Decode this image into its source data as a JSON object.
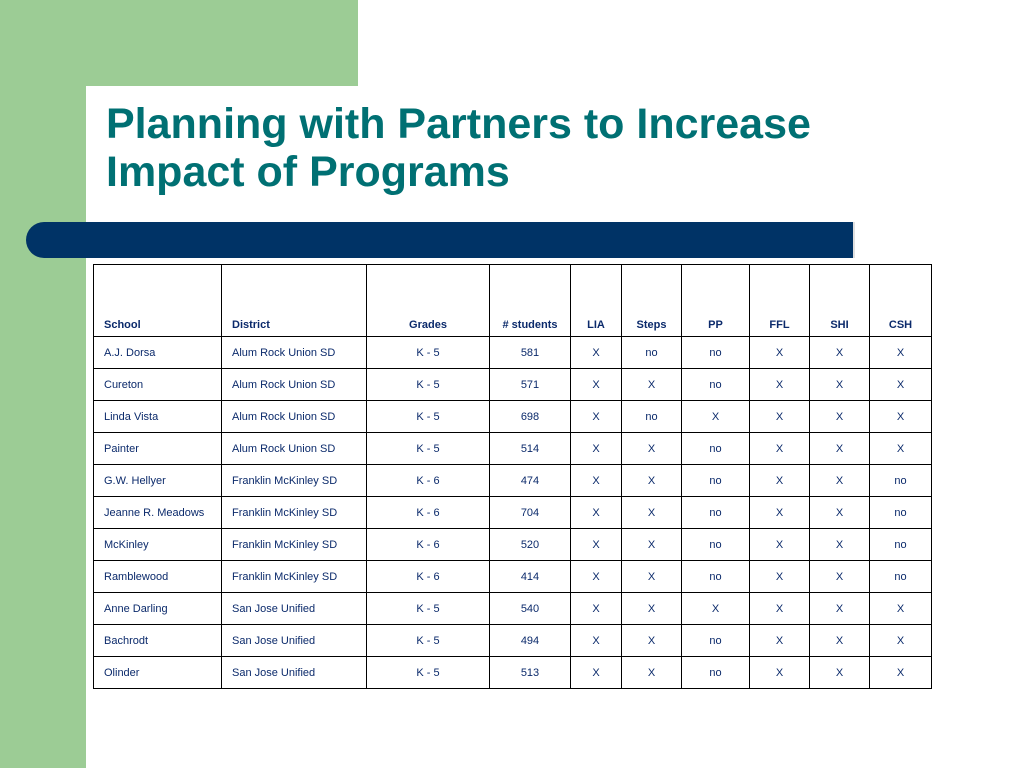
{
  "title": {
    "line1": "Planning with Partners to Increase",
    "line2": "Impact of Programs"
  },
  "table": {
    "headers": [
      "School",
      "District",
      "Grades",
      "# students",
      "LIA",
      "Steps",
      "PP",
      "FFL",
      "SHI",
      "CSH"
    ],
    "rows": [
      [
        "A.J. Dorsa",
        "Alum Rock Union SD",
        "K - 5",
        "581",
        "X",
        "no",
        "no",
        "X",
        "X",
        "X"
      ],
      [
        "Cureton",
        "Alum Rock Union SD",
        "K - 5",
        "571",
        "X",
        "X",
        "no",
        "X",
        "X",
        "X"
      ],
      [
        "Linda Vista",
        "Alum Rock Union SD",
        "K - 5",
        "698",
        "X",
        "no",
        "X",
        "X",
        "X",
        "X"
      ],
      [
        "Painter",
        "Alum Rock Union SD",
        "K - 5",
        "514",
        "X",
        "X",
        "no",
        "X",
        "X",
        "X"
      ],
      [
        "G.W. Hellyer",
        "Franklin McKinley SD",
        "K - 6",
        "474",
        "X",
        "X",
        "no",
        "X",
        "X",
        "no"
      ],
      [
        "Jeanne R. Meadows",
        "Franklin McKinley SD",
        "K - 6",
        "704",
        "X",
        "X",
        "no",
        "X",
        "X",
        "no"
      ],
      [
        "McKinley",
        "Franklin McKinley SD",
        "K - 6",
        "520",
        "X",
        "X",
        "no",
        "X",
        "X",
        "no"
      ],
      [
        "Ramblewood",
        "Franklin McKinley SD",
        "K - 6",
        "414",
        "X",
        "X",
        "no",
        "X",
        "X",
        "no"
      ],
      [
        "Anne Darling",
        "San Jose Unified",
        "K - 5",
        "540",
        "X",
        "X",
        "X",
        "X",
        "X",
        "X"
      ],
      [
        "Bachrodt",
        "San Jose Unified",
        "K - 5",
        "494",
        "X",
        "X",
        "no",
        "X",
        "X",
        "X"
      ],
      [
        "Olinder",
        "San Jose Unified",
        "K - 5",
        "513",
        "X",
        "X",
        "no",
        "X",
        "X",
        "X"
      ]
    ]
  }
}
